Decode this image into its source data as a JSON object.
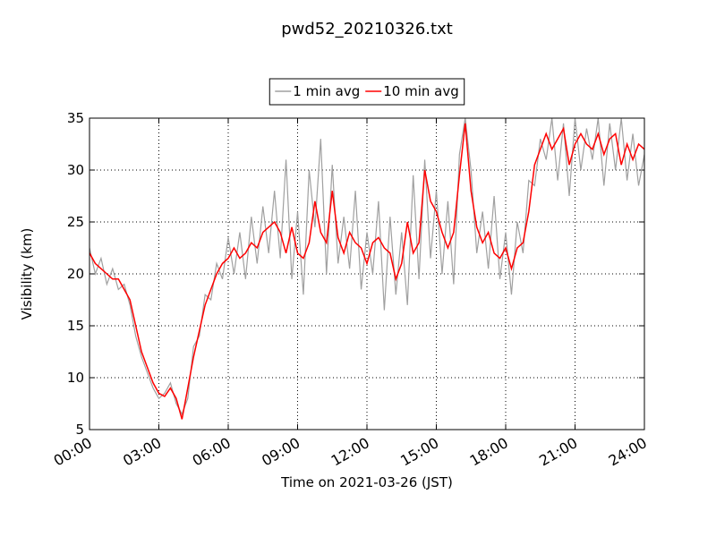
{
  "chart_data": {
    "type": "line",
    "title": "pwd52_20210326.txt",
    "x_label": "Time on 2021-03-26 (JST)",
    "y_label": "Visibility (km)",
    "x": [
      0,
      0.25,
      0.5,
      0.75,
      1,
      1.25,
      1.5,
      1.75,
      2,
      2.25,
      2.5,
      2.75,
      3,
      3.25,
      3.5,
      3.75,
      4,
      4.25,
      4.5,
      4.75,
      5,
      5.25,
      5.5,
      5.75,
      6,
      6.25,
      6.5,
      6.75,
      7,
      7.25,
      7.5,
      7.75,
      8,
      8.25,
      8.5,
      8.75,
      9,
      9.25,
      9.5,
      9.75,
      10,
      10.25,
      10.5,
      10.75,
      11,
      11.25,
      11.5,
      11.75,
      12,
      12.25,
      12.5,
      12.75,
      13,
      13.25,
      13.5,
      13.75,
      14,
      14.25,
      14.5,
      14.75,
      15,
      15.25,
      15.5,
      15.75,
      16,
      16.25,
      16.5,
      16.75,
      17,
      17.25,
      17.5,
      17.75,
      18,
      18.25,
      18.5,
      18.75,
      19,
      19.25,
      19.5,
      19.75,
      20,
      20.25,
      20.5,
      20.75,
      21,
      21.25,
      21.5,
      21.75,
      22,
      22.25,
      22.5,
      22.75,
      23,
      23.25,
      23.5,
      23.75,
      24
    ],
    "series": [
      {
        "name": "1 min avg",
        "color": "#a0a0a0",
        "values": [
          22.5,
          20.0,
          21.5,
          19.0,
          20.5,
          18.5,
          19.0,
          17.0,
          14.0,
          12.0,
          10.5,
          9.0,
          8.0,
          8.5,
          9.5,
          7.5,
          6.5,
          8.0,
          13.0,
          14.0,
          18.0,
          17.5,
          21.0,
          19.5,
          23.5,
          20.0,
          24.0,
          19.5,
          25.5,
          21.0,
          26.5,
          22.0,
          28.0,
          21.5,
          31.0,
          19.5,
          26.0,
          18.0,
          30.0,
          24.5,
          33.0,
          20.0,
          30.5,
          21.0,
          25.5,
          20.5,
          28.0,
          18.5,
          24.0,
          20.0,
          27.0,
          16.5,
          25.5,
          18.0,
          24.0,
          17.0,
          29.5,
          19.5,
          31.0,
          21.5,
          28.0,
          20.0,
          27.0,
          19.0,
          31.5,
          35.0,
          30.0,
          22.0,
          26.0,
          20.5,
          27.5,
          19.5,
          24.0,
          18.0,
          25.0,
          22.0,
          29.0,
          28.5,
          33.0,
          31.0,
          35.0,
          29.0,
          34.5,
          27.5,
          35.0,
          30.0,
          34.0,
          31.0,
          35.0,
          28.5,
          34.5,
          30.0,
          35.0,
          29.0,
          33.5,
          28.5,
          31.5
        ]
      },
      {
        "name": "10 min avg",
        "color": "#ff0000",
        "values": [
          22.0,
          21.0,
          20.5,
          20.0,
          19.5,
          19.5,
          18.5,
          17.5,
          15.0,
          12.5,
          11.0,
          9.5,
          8.5,
          8.2,
          9.0,
          8.0,
          6.0,
          9.0,
          12.0,
          14.5,
          17.0,
          18.5,
          20.0,
          21.0,
          21.5,
          22.5,
          21.5,
          22.0,
          23.0,
          22.5,
          24.0,
          24.5,
          25.0,
          24.0,
          22.0,
          24.5,
          22.0,
          21.5,
          23.0,
          27.0,
          24.0,
          23.0,
          28.0,
          23.5,
          22.0,
          24.0,
          23.0,
          22.5,
          21.0,
          23.0,
          23.5,
          22.5,
          22.0,
          19.5,
          21.0,
          25.0,
          22.0,
          23.0,
          30.0,
          27.0,
          26.0,
          24.0,
          22.5,
          24.0,
          29.5,
          34.5,
          28.0,
          24.5,
          23.0,
          24.0,
          22.0,
          21.5,
          22.5,
          20.5,
          22.5,
          23.0,
          26.0,
          30.5,
          32.0,
          33.5,
          32.0,
          33.0,
          34.0,
          30.5,
          32.5,
          33.5,
          32.5,
          32.0,
          33.5,
          31.5,
          33.0,
          33.5,
          30.5,
          32.5,
          31.0,
          32.5,
          32.0
        ]
      }
    ],
    "xlim": [
      0,
      24
    ],
    "xticks": [
      {
        "value": 0,
        "label": "00:00"
      },
      {
        "value": 3,
        "label": "03:00"
      },
      {
        "value": 6,
        "label": "06:00"
      },
      {
        "value": 9,
        "label": "09:00"
      },
      {
        "value": 12,
        "label": "12:00"
      },
      {
        "value": 15,
        "label": "15:00"
      },
      {
        "value": 18,
        "label": "18:00"
      },
      {
        "value": 21,
        "label": "21:00"
      },
      {
        "value": 24,
        "label": "24:00"
      }
    ],
    "ylim": [
      5,
      35
    ],
    "yticks": [
      5,
      10,
      15,
      20,
      25,
      30,
      35
    ],
    "grid": true,
    "legend": "top"
  }
}
